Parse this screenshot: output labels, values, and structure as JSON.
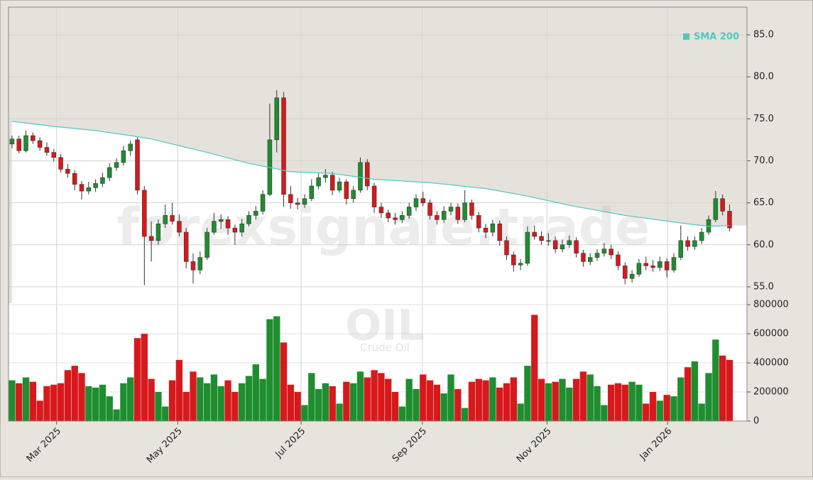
{
  "chart_data": [
    {
      "type": "candlestick",
      "watermark": "forexsignale.trade",
      "up_color": "#1e8e2e",
      "down_color": "#d7191c",
      "open": [
        72.0,
        72.6,
        71.2,
        73.0,
        72.4,
        71.6,
        71.0,
        70.4,
        69.0,
        68.5,
        67.2,
        66.4,
        66.8,
        67.3,
        68.0,
        69.2,
        69.8,
        71.2,
        72.5,
        66.5,
        61.0,
        60.5,
        62.5,
        63.5,
        62.8,
        61.5,
        58.0,
        57.0,
        58.5,
        61.5,
        62.8,
        63.0,
        62.0,
        61.5,
        62.5,
        63.5,
        64.0,
        66.0,
        72.5,
        77.5,
        66.0,
        65.0,
        64.8,
        65.5,
        67.0,
        68.0,
        68.3,
        66.5,
        67.5,
        65.5,
        66.5,
        69.8,
        67.0,
        64.5,
        63.8,
        63.2,
        63.0,
        63.5,
        64.5,
        65.5,
        65.0,
        63.5,
        63.0,
        64.0,
        64.5,
        63.0,
        65.0,
        63.5,
        62.0,
        61.5,
        62.5,
        60.5,
        58.8,
        57.6,
        57.8,
        61.5,
        61.0,
        60.5,
        60.5,
        59.5,
        60.0,
        60.5,
        59.0,
        58.0,
        58.5,
        59.0,
        59.5,
        58.8,
        57.5,
        56.0,
        56.5,
        57.8,
        57.5,
        57.3,
        58.0,
        57.0,
        58.5,
        60.5,
        59.8,
        60.5,
        61.5,
        63.0,
        65.5,
        64.0
      ],
      "high": [
        73.0,
        73.0,
        73.6,
        73.4,
        72.8,
        72.2,
        71.4,
        70.8,
        69.6,
        68.9,
        67.6,
        67.5,
        67.8,
        68.6,
        69.7,
        70.3,
        71.8,
        72.4,
        72.8,
        67.0,
        62.8,
        63.0,
        64.8,
        65.0,
        63.6,
        62.0,
        59.0,
        59.2,
        62.0,
        63.8,
        63.6,
        63.4,
        62.4,
        63.1,
        64.0,
        64.6,
        66.5,
        76.8,
        78.4,
        78.2,
        67.0,
        65.6,
        66.0,
        67.8,
        68.5,
        69.0,
        68.7,
        68.0,
        67.8,
        67.0,
        70.4,
        70.2,
        67.4,
        65.0,
        64.2,
        63.8,
        64.0,
        65.0,
        66.0,
        66.3,
        65.4,
        64.0,
        64.6,
        65.0,
        64.9,
        66.5,
        65.4,
        63.9,
        62.5,
        63.0,
        62.9,
        61.0,
        59.2,
        58.3,
        62.2,
        62.3,
        61.6,
        61.4,
        61.0,
        60.6,
        61.1,
        60.9,
        59.4,
        59.0,
        59.5,
        60.2,
        60.0,
        59.2,
        57.9,
        57.0,
        58.3,
        58.6,
        58.2,
        58.6,
        58.4,
        59.0,
        62.3,
        61.0,
        61.0,
        62.0,
        63.5,
        66.4,
        66.0,
        64.8
      ],
      "low": [
        71.5,
        70.9,
        71.0,
        72.0,
        71.2,
        70.6,
        69.9,
        68.6,
        68.0,
        66.5,
        65.4,
        66.0,
        66.3,
        66.9,
        67.6,
        68.8,
        69.4,
        70.6,
        66.0,
        55.2,
        58.0,
        60.0,
        62.0,
        62.4,
        61.0,
        57.2,
        55.4,
        56.5,
        58.2,
        61.2,
        61.9,
        61.2,
        60.0,
        61.0,
        62.2,
        63.0,
        63.6,
        65.8,
        71.0,
        64.5,
        64.3,
        64.2,
        64.4,
        65.2,
        66.6,
        67.4,
        65.9,
        66.2,
        64.8,
        65.0,
        66.2,
        66.5,
        63.8,
        63.2,
        62.7,
        62.4,
        62.6,
        63.1,
        64.0,
        64.6,
        63.0,
        62.4,
        62.6,
        63.5,
        62.5,
        62.7,
        63.0,
        61.5,
        60.8,
        61.0,
        59.9,
        58.2,
        56.8,
        57.0,
        57.5,
        60.6,
        60.0,
        59.9,
        59.0,
        59.1,
        59.6,
        58.5,
        57.4,
        57.6,
        58.1,
        58.6,
        58.3,
        57.0,
        55.3,
        55.5,
        56.2,
        57.0,
        56.8,
        56.9,
        56.1,
        56.7,
        58.2,
        59.3,
        59.4,
        60.1,
        61.2,
        62.7,
        63.5,
        61.6
      ],
      "close": [
        72.6,
        71.2,
        73.0,
        72.4,
        71.6,
        71.0,
        70.4,
        69.0,
        68.5,
        67.2,
        66.4,
        66.8,
        67.3,
        68.0,
        69.2,
        69.8,
        71.2,
        72.0,
        66.5,
        61.0,
        60.5,
        62.5,
        63.5,
        62.8,
        61.5,
        58.0,
        57.0,
        58.5,
        61.5,
        62.8,
        63.0,
        62.0,
        61.5,
        62.5,
        63.5,
        64.0,
        66.0,
        72.5,
        77.5,
        66.0,
        65.0,
        64.8,
        65.5,
        67.0,
        68.0,
        68.3,
        66.5,
        67.5,
        65.5,
        66.5,
        69.8,
        67.0,
        64.5,
        63.8,
        63.2,
        63.0,
        63.5,
        64.5,
        65.5,
        65.0,
        63.5,
        63.0,
        64.0,
        64.5,
        63.0,
        65.0,
        63.5,
        62.0,
        61.5,
        62.5,
        60.5,
        58.8,
        57.6,
        57.8,
        61.5,
        61.0,
        60.5,
        60.5,
        59.5,
        60.0,
        60.5,
        59.0,
        58.0,
        58.5,
        59.0,
        59.5,
        58.8,
        57.5,
        56.0,
        56.5,
        57.8,
        57.5,
        57.3,
        58.0,
        57.0,
        58.5,
        60.5,
        59.8,
        60.5,
        61.5,
        63.0,
        65.5,
        64.0,
        62.0
      ],
      "sma": {
        "name": "SMA 200",
        "color": "#4fc9c0",
        "x": [
          0,
          6,
          12,
          17,
          20,
          28,
          34,
          40,
          46,
          52,
          60,
          68,
          74,
          80,
          88,
          96,
          100,
          103
        ],
        "values": [
          74.7,
          74.1,
          73.6,
          73.0,
          72.6,
          71.0,
          69.7,
          68.7,
          68.5,
          67.8,
          67.4,
          66.7,
          65.8,
          64.7,
          63.5,
          62.6,
          62.2,
          62.3
        ]
      },
      "xlim": [
        0,
        106
      ],
      "xticks": [
        {
          "value": 6.9,
          "label": "Mar 2025"
        },
        {
          "value": 24.3,
          "label": "May 2025"
        },
        {
          "value": 42.0,
          "label": "Jul 2025"
        },
        {
          "value": 59.4,
          "label": "Sep 2025"
        },
        {
          "value": 77.3,
          "label": "Nov 2025"
        },
        {
          "value": 94.6,
          "label": "Jan 2026"
        }
      ],
      "ylim": [
        53.05,
        88.3
      ],
      "yticks": [
        {
          "value": 55,
          "label": "55.0"
        },
        {
          "value": 60,
          "label": "60.0"
        },
        {
          "value": 65,
          "label": "65.0"
        },
        {
          "value": 70,
          "label": "70.0"
        },
        {
          "value": 75,
          "label": "75.0"
        },
        {
          "value": 80,
          "label": "80.0"
        },
        {
          "value": 85,
          "label": "85.0"
        }
      ],
      "grid": true
    },
    {
      "type": "bar",
      "title": "OIL",
      "subtitle": "Crude Oil",
      "values": [
        280000,
        260000,
        300000,
        270000,
        140000,
        240000,
        250000,
        260000,
        350000,
        380000,
        330000,
        240000,
        230000,
        250000,
        170000,
        80000,
        260000,
        300000,
        570000,
        600000,
        290000,
        200000,
        100000,
        280000,
        420000,
        200000,
        340000,
        300000,
        260000,
        320000,
        240000,
        280000,
        200000,
        260000,
        310000,
        390000,
        290000,
        700000,
        720000,
        540000,
        250000,
        200000,
        110000,
        330000,
        220000,
        260000,
        240000,
        120000,
        270000,
        260000,
        340000,
        300000,
        350000,
        330000,
        290000,
        200000,
        100000,
        290000,
        220000,
        320000,
        280000,
        250000,
        190000,
        320000,
        220000,
        90000,
        270000,
        290000,
        280000,
        300000,
        230000,
        260000,
        300000,
        120000,
        380000,
        730000,
        290000,
        260000,
        270000,
        290000,
        230000,
        290000,
        340000,
        320000,
        240000,
        110000,
        250000,
        260000,
        250000,
        270000,
        250000,
        120000,
        200000,
        140000,
        180000,
        170000,
        300000,
        370000,
        410000,
        120000,
        330000,
        560000,
        450000,
        420000
      ],
      "ylim": [
        0,
        810000
      ],
      "yticks": [
        0,
        200000,
        400000,
        600000,
        800000
      ]
    }
  ]
}
